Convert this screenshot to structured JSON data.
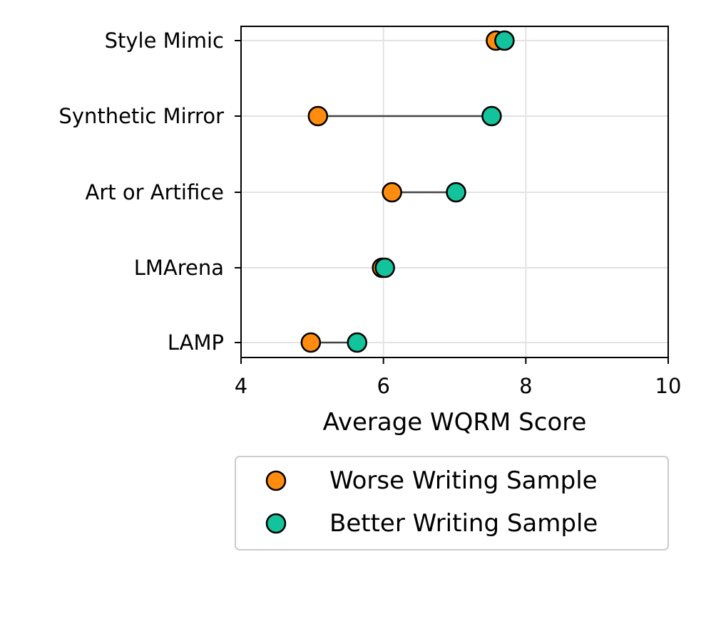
{
  "chart_data": {
    "type": "scatter",
    "subtype": "dumbbell",
    "title": "",
    "xlabel": "Average WQRM Score",
    "ylabel": "",
    "xlim": [
      4,
      10
    ],
    "xticks": [
      4,
      6,
      8,
      10
    ],
    "xtick_labels": [
      "4",
      "6",
      "8",
      "10"
    ],
    "grid": true,
    "legend_position": "below",
    "categories": [
      "Style Mimic",
      "Synthetic Mirror",
      "Art or Artifice",
      "LMArena",
      "LAMP"
    ],
    "series": [
      {
        "name": "Worse Writing Sample",
        "color": "#ff8c0f",
        "values": [
          7.58,
          5.08,
          6.12,
          5.98,
          4.98
        ]
      },
      {
        "name": "Better Writing Sample",
        "color": "#12c39b",
        "values": [
          7.7,
          7.52,
          7.02,
          6.02,
          5.63
        ]
      }
    ],
    "connector_color": "#444444",
    "marker_edge_color": "#000000"
  }
}
